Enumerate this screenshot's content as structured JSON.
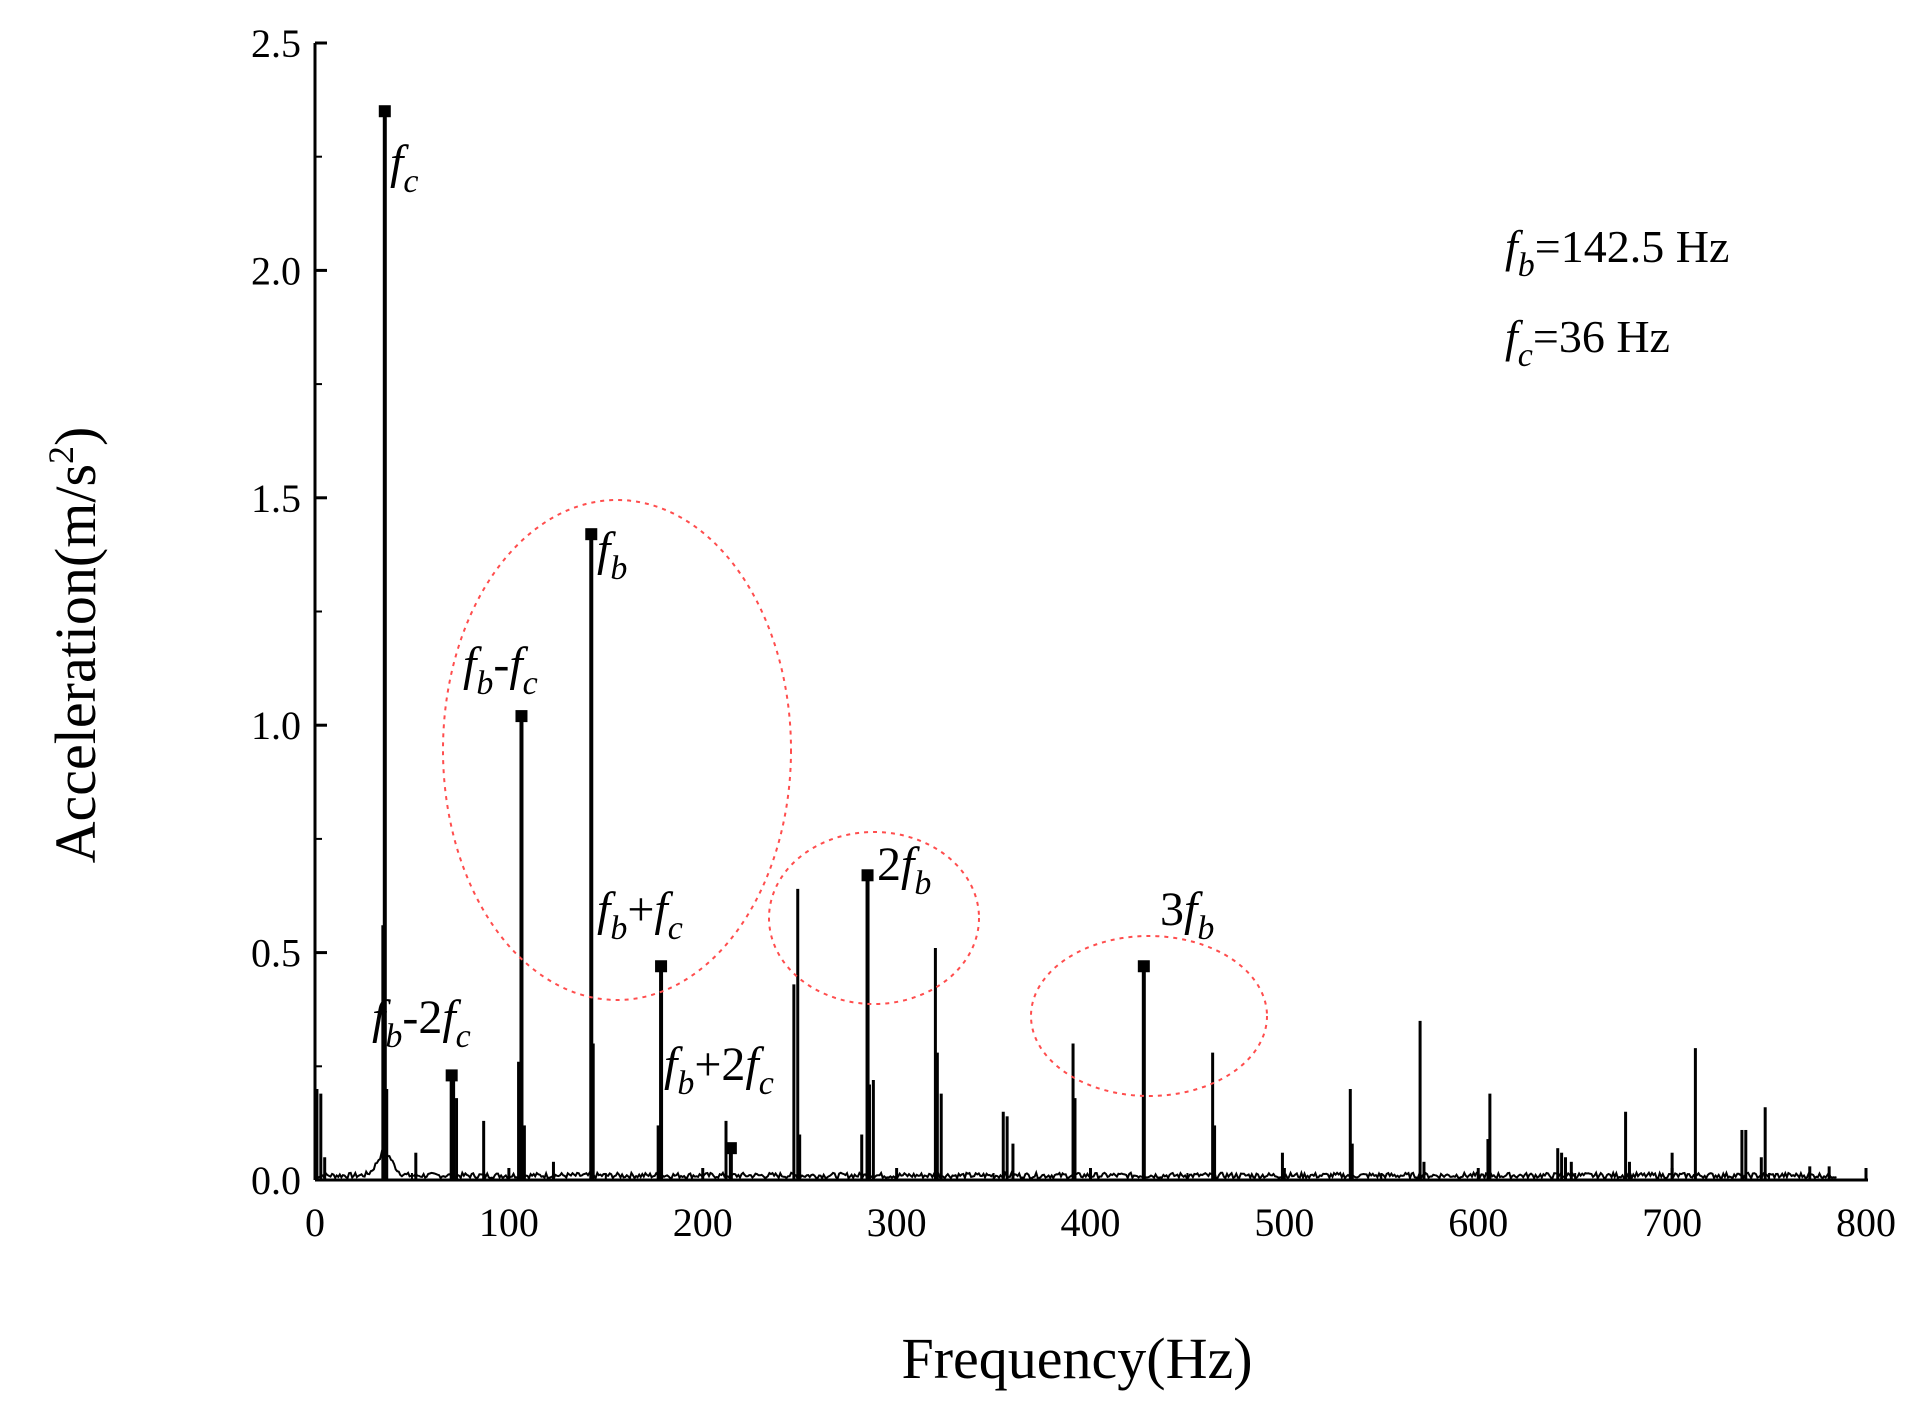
{
  "chart_data": {
    "type": "line",
    "xlabel": "Frequency(Hz)",
    "ylabel": "Acceleration(m/s",
    "ylabel_sup": "2",
    "ylabel_close": ")",
    "xlim": [
      0,
      800
    ],
    "ylim": [
      0,
      2.5
    ],
    "xticks": [
      0,
      100,
      200,
      300,
      400,
      500,
      600,
      700,
      800
    ],
    "yticks": [
      "0.0",
      "0.5",
      "1.0",
      "1.5",
      "2.0",
      "2.5"
    ],
    "grid": false,
    "series": [
      {
        "color": "#000000",
        "peaks": [
          [
            1,
            0.2
          ],
          [
            3,
            0.19
          ],
          [
            5,
            0.05
          ],
          [
            36,
            2.35
          ],
          [
            35,
            0.56
          ],
          [
            37,
            0.2
          ],
          [
            52,
            0.06
          ],
          [
            71.5,
            0.23
          ],
          [
            73,
            0.18
          ],
          [
            87,
            0.13
          ],
          [
            106.5,
            1.02
          ],
          [
            105,
            0.26
          ],
          [
            108,
            0.12
          ],
          [
            123,
            0.04
          ],
          [
            142.5,
            1.42
          ],
          [
            143.5,
            0.3
          ],
          [
            178.5,
            0.47
          ],
          [
            177,
            0.12
          ],
          [
            212,
            0.13
          ],
          [
            214.5,
            0.07
          ],
          [
            247,
            0.43
          ],
          [
            249,
            0.64
          ],
          [
            250,
            0.1
          ],
          [
            282,
            0.1
          ],
          [
            285,
            0.67
          ],
          [
            286,
            0.21
          ],
          [
            288,
            0.22
          ],
          [
            320,
            0.51
          ],
          [
            321,
            0.28
          ],
          [
            323,
            0.19
          ],
          [
            355,
            0.15
          ],
          [
            357,
            0.14
          ],
          [
            360,
            0.08
          ],
          [
            391,
            0.3
          ],
          [
            392,
            0.18
          ],
          [
            427.5,
            0.47
          ],
          [
            463,
            0.28
          ],
          [
            464,
            0.12
          ],
          [
            499,
            0.06
          ],
          [
            534,
            0.2
          ],
          [
            535,
            0.08
          ],
          [
            570,
            0.35
          ],
          [
            572,
            0.04
          ],
          [
            605,
            0.09
          ],
          [
            606,
            0.19
          ],
          [
            641,
            0.07
          ],
          [
            643,
            0.06
          ],
          [
            645,
            0.05
          ],
          [
            648,
            0.04
          ],
          [
            676,
            0.15
          ],
          [
            678,
            0.04
          ],
          [
            700,
            0.06
          ],
          [
            712,
            0.29
          ],
          [
            736,
            0.11
          ],
          [
            738,
            0.11
          ],
          [
            746,
            0.05
          ],
          [
            748,
            0.16
          ],
          [
            771,
            0.03
          ],
          [
            781,
            0.03
          ]
        ]
      }
    ],
    "markers": [
      {
        "label": "f_c",
        "x": 36,
        "y": 2.35
      },
      {
        "label": "f_b",
        "x": 142.5,
        "y": 1.42
      },
      {
        "label": "f_b-f_c",
        "x": 106.5,
        "y": 1.02
      },
      {
        "label": "2f_b",
        "x": 285,
        "y": 0.67
      },
      {
        "label": "f_b+f_c",
        "x": 178.5,
        "y": 0.47
      },
      {
        "label": "3f_b",
        "x": 427.5,
        "y": 0.47
      },
      {
        "label": "f_b-2f_c",
        "x": 70.5,
        "y": 0.23
      },
      {
        "label": "f_b+2f_c",
        "x": 214.5,
        "y": 0.07
      }
    ],
    "annotations": {
      "fc": {
        "main": "f",
        "sub": "c"
      },
      "fb": {
        "main": "f",
        "sub": "b"
      },
      "fb_minus_fc": {
        "m1": "f",
        "s1": "b",
        "op": "-",
        "m2": "f",
        "s2": "c"
      },
      "two_fb": {
        "coef": "2",
        "main": "f",
        "sub": "b"
      },
      "fb_plus_fc": {
        "m1": "f",
        "s1": "b",
        "op": "+",
        "m2": "f",
        "s2": "c"
      },
      "three_fb": {
        "coef": "3",
        "main": "f",
        "sub": "b"
      },
      "fb_minus_2fc": {
        "m1": "f",
        "s1": "b",
        "op": "-2",
        "m2": "f",
        "s2": "c"
      },
      "fb_plus_2fc": {
        "m1": "f",
        "s1": "b",
        "op": "+2",
        "m2": "f",
        "s2": "c"
      }
    },
    "info_box": {
      "line1": {
        "main": "f",
        "sub": "b",
        "text": "=142.5 Hz"
      },
      "line2": {
        "main": "f",
        "sub": "c",
        "text": "=36 Hz"
      }
    },
    "ellipse_color": "#ff4d4d"
  }
}
